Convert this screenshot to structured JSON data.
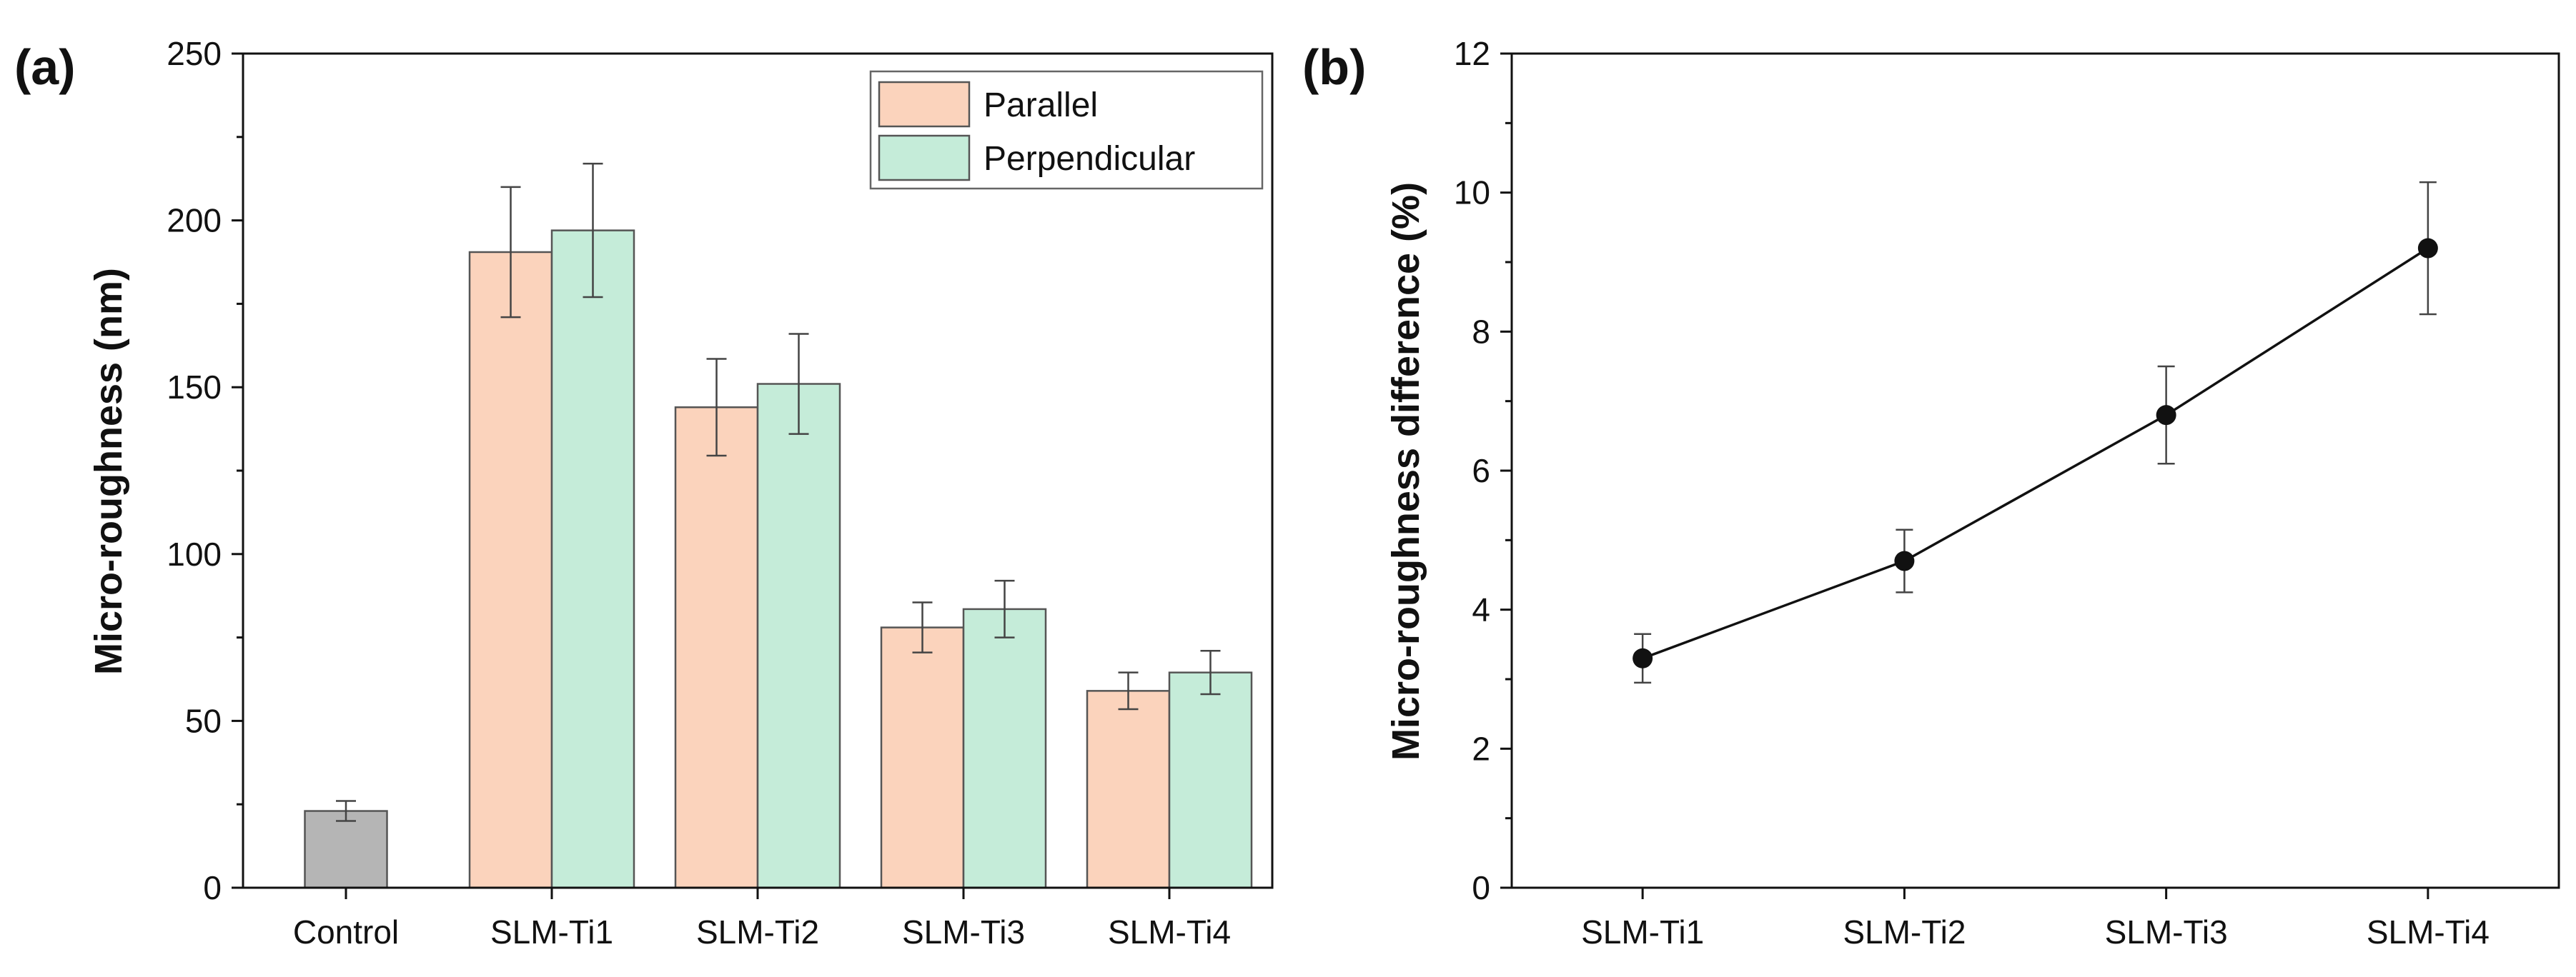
{
  "chart_data": [
    {
      "type": "bar",
      "panel_label": "(a)",
      "title": "",
      "xlabel": "",
      "ylabel": "Micro-roughness (nm)",
      "ylim": [
        0,
        250
      ],
      "yticks": [
        0,
        50,
        100,
        150,
        200,
        250
      ],
      "categories": [
        "Control",
        "SLM-Ti1",
        "SLM-Ti2",
        "SLM-Ti3",
        "SLM-Ti4"
      ],
      "control": {
        "name": "Control",
        "value": 23,
        "error": 3,
        "color": "#b5b5b5"
      },
      "series": [
        {
          "name": "Parallel",
          "color": "#fbd3bc",
          "values": [
            null,
            190.5,
            144,
            78,
            59
          ],
          "errors": [
            null,
            19.5,
            14.5,
            7.5,
            5.5
          ]
        },
        {
          "name": "Perpendicular",
          "color": "#c5ecd9",
          "values": [
            null,
            197,
            151,
            83.5,
            64.5
          ],
          "errors": [
            null,
            20,
            15,
            8.5,
            6.5
          ]
        }
      ],
      "legend_position": "top-right"
    },
    {
      "type": "line",
      "panel_label": "(b)",
      "title": "",
      "xlabel": "",
      "ylabel": "Micro-roughness difference (%)",
      "ylim": [
        0,
        12
      ],
      "yticks": [
        0,
        2,
        4,
        6,
        8,
        10,
        12
      ],
      "x": [
        "SLM-Ti1",
        "SLM-Ti2",
        "SLM-Ti3",
        "SLM-Ti4"
      ],
      "series": [
        {
          "name": "Micro-roughness difference",
          "color": "#111111",
          "values": [
            3.3,
            4.7,
            6.8,
            9.2
          ],
          "errors": [
            0.35,
            0.45,
            0.7,
            0.95
          ]
        }
      ]
    }
  ]
}
